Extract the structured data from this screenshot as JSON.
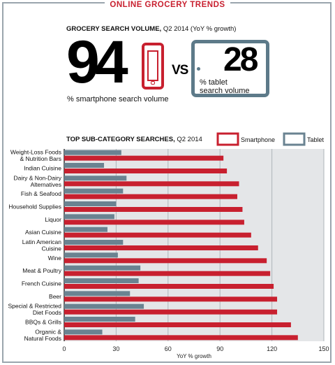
{
  "header": {
    "title": "ONLINE GROCERY TRENDS"
  },
  "volume": {
    "heading_bold": "GROCERY SEARCH VOLUME,",
    "heading_rest": " Q2 2014 (YoY % growth)",
    "smartphone_value": "94",
    "smartphone_caption": "% smartphone search volume",
    "vs_label": "VS",
    "tablet_value": "28",
    "tablet_caption_line1": "% tablet",
    "tablet_caption_line2": "search volume",
    "smartphone_icon": "smartphone-icon",
    "tablet_icon": "tablet-icon"
  },
  "chart_data": {
    "type": "bar",
    "orientation": "horizontal",
    "title": "TOP SUB-CATEGORY SEARCHES,",
    "subtitle": " Q2 2014",
    "xlabel": "YoY % growth",
    "xlim": [
      0,
      150
    ],
    "xticks": [
      0,
      30,
      60,
      90,
      120,
      150
    ],
    "grid": true,
    "legend_position": "top-right",
    "categories": [
      [
        "Weight-Loss Foods",
        "& Nutrition Bars"
      ],
      [
        "Indian Cuisine"
      ],
      [
        "Dairy & Non-Dairy",
        "Alternatives"
      ],
      [
        "Fish & Seafood"
      ],
      [
        "Household Supplies"
      ],
      [
        "Liquor"
      ],
      [
        "Asian Cuisine"
      ],
      [
        "Latin American",
        "Cuisine"
      ],
      [
        "Wine"
      ],
      [
        "Meat & Poultry"
      ],
      [
        "French Cuisine"
      ],
      [
        "Beer"
      ],
      [
        "Special & Restricted",
        "Diet Foods"
      ],
      [
        "BBQs & Grills"
      ],
      [
        "Organic &",
        "Natural Foods"
      ]
    ],
    "series": [
      {
        "name": "Tablet",
        "color": "#6a8391",
        "values": [
          33,
          23,
          36,
          34,
          30,
          29,
          25,
          34,
          31,
          44,
          43,
          38,
          46,
          41,
          22
        ]
      },
      {
        "name": "Smartphone",
        "color": "#c8202f",
        "values": [
          92,
          94,
          101,
          100,
          103,
          104,
          108,
          112,
          117,
          119,
          121,
          123,
          123,
          131,
          135
        ]
      }
    ]
  }
}
